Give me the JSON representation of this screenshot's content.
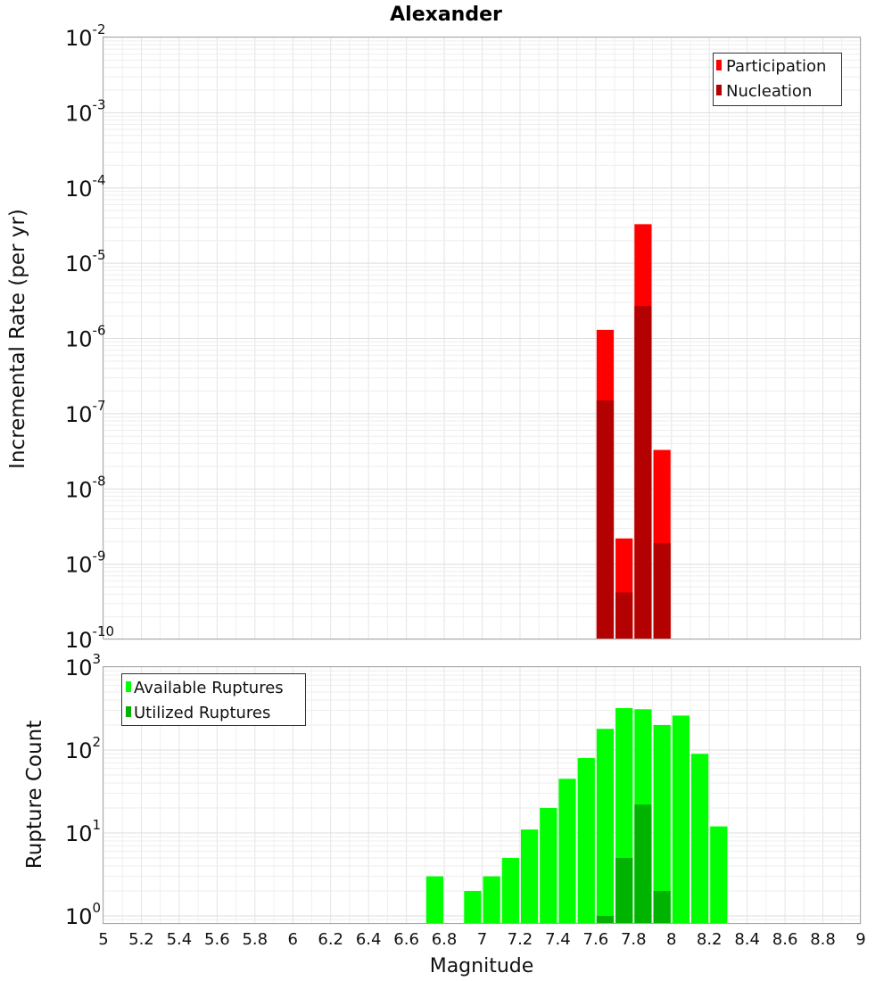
{
  "chart_data": [
    {
      "type": "bar",
      "title": "Alexander",
      "ylabel": "Incremental Rate (per yr)",
      "yscale": "log",
      "ylim": [
        1e-10,
        0.01
      ],
      "xlim": [
        5,
        9
      ],
      "bin_width": 0.1,
      "ytick_labels": [
        {
          "base": "10",
          "exp": "-10"
        },
        {
          "base": "10",
          "exp": "-9"
        },
        {
          "base": "10",
          "exp": "-8"
        },
        {
          "base": "10",
          "exp": "-7"
        },
        {
          "base": "10",
          "exp": "-6"
        },
        {
          "base": "10",
          "exp": "-5"
        },
        {
          "base": "10",
          "exp": "-4"
        },
        {
          "base": "10",
          "exp": "-3"
        },
        {
          "base": "10",
          "exp": "-2"
        }
      ],
      "legend_position": "top-right",
      "series": [
        {
          "name": "Participation",
          "color": "#ff0000",
          "x": [
            7.65,
            7.75,
            7.85,
            7.95
          ],
          "values": [
            1.3e-06,
            2.2e-09,
            3.3e-05,
            3.3e-08
          ]
        },
        {
          "name": "Nucleation",
          "color": "#b30000",
          "x": [
            7.65,
            7.75,
            7.85,
            7.95
          ],
          "values": [
            1.5e-07,
            4.2e-10,
            2.7e-06,
            1.9e-09
          ]
        }
      ]
    },
    {
      "type": "bar",
      "ylabel": "Rupture Count",
      "xlabel": "Magnitude",
      "yscale": "log",
      "ylim": [
        0.8,
        1000
      ],
      "xlim": [
        5,
        9
      ],
      "bin_width": 0.1,
      "ytick_labels": [
        {
          "base": "10",
          "exp": "0"
        },
        {
          "base": "10",
          "exp": "1"
        },
        {
          "base": "10",
          "exp": "2"
        },
        {
          "base": "10",
          "exp": "3"
        }
      ],
      "xtick_labels": [
        "5",
        "5.2",
        "5.4",
        "5.6",
        "5.8",
        "6",
        "6.2",
        "6.4",
        "6.6",
        "6.8",
        "7",
        "7.2",
        "7.4",
        "7.6",
        "7.8",
        "8",
        "8.2",
        "8.4",
        "8.6",
        "8.8",
        "9"
      ],
      "legend_position": "top-left",
      "series": [
        {
          "name": "Available Ruptures",
          "color": "#00ff00",
          "x": [
            6.75,
            6.95,
            7.05,
            7.15,
            7.25,
            7.35,
            7.45,
            7.55,
            7.65,
            7.75,
            7.85,
            7.95,
            8.05,
            8.15,
            8.25
          ],
          "values": [
            3,
            2,
            3,
            5,
            11,
            20,
            45,
            80,
            180,
            320,
            310,
            200,
            260,
            90,
            12
          ]
        },
        {
          "name": "Utilized Ruptures",
          "color": "#00b300",
          "x": [
            7.65,
            7.75,
            7.85,
            7.95
          ],
          "values": [
            1,
            5,
            22,
            2
          ]
        }
      ]
    }
  ]
}
